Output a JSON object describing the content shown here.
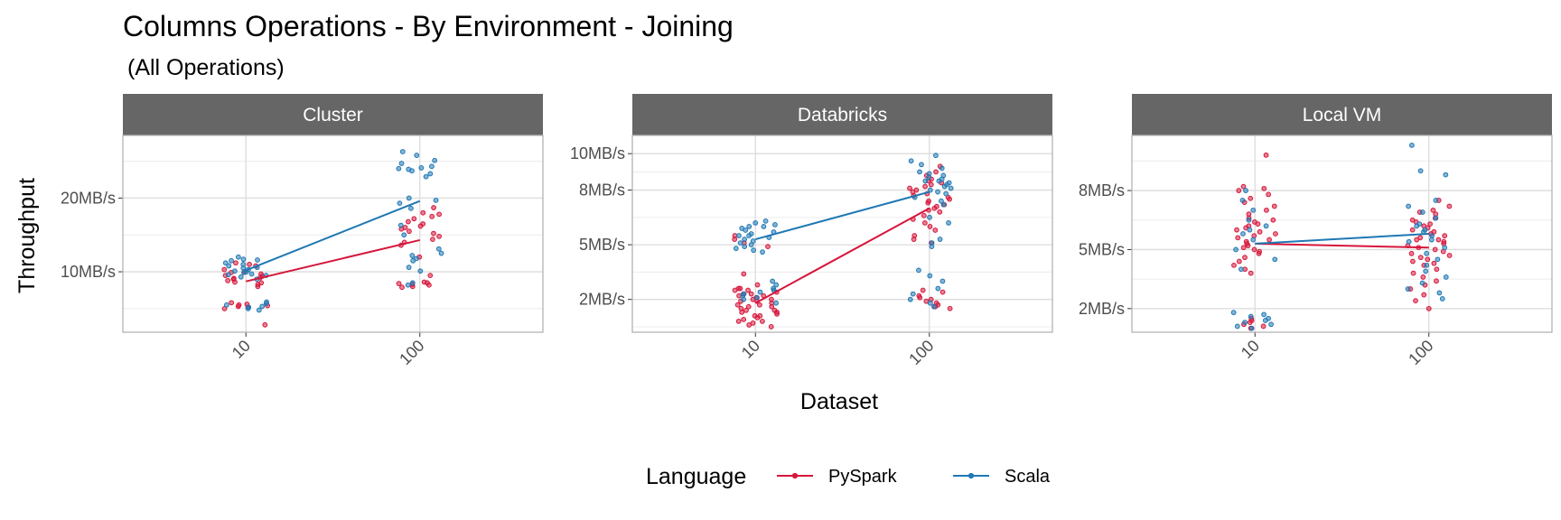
{
  "chart_data": {
    "type": "scatter",
    "title": "Columns Operations - By Environment - Joining",
    "subtitle": "(All Operations)",
    "xlabel": "Dataset",
    "ylabel": "Throughput",
    "x_categories": [
      "10",
      "100"
    ],
    "legend": {
      "title": "Language",
      "position": "bottom",
      "entries": [
        {
          "name": "PySpark",
          "color": "#d6163b"
        },
        {
          "name": "Scala",
          "color": "#1f78b4"
        }
      ]
    },
    "grid": true,
    "facets": [
      {
        "name": "Cluster",
        "ylim": [
          1.8,
          28.5
        ],
        "y_ticks": [
          {
            "value": 10,
            "label": "10MB/s"
          },
          {
            "value": 20,
            "label": "20MB/s"
          }
        ],
        "series": [
          {
            "name": "PySpark",
            "line": [
              {
                "x": "10",
                "y": 8.7
              },
              {
                "x": "100",
                "y": 14.3
              }
            ],
            "points": {
              "10": [
                10.3,
                10.0,
                9.7,
                9.5,
                9.2,
                9.0,
                8.8,
                8.5,
                8.3,
                8.0,
                10.8,
                11.0,
                9.9,
                9.4,
                8.6,
                5.8,
                5.6,
                5.4,
                5.2,
                5.0,
                5.5,
                5.3,
                2.8,
                11.2,
                9.1
              ],
              "100": [
                18.7,
                18.0,
                17.5,
                17.2,
                16.8,
                16.5,
                16.0,
                15.5,
                15.2,
                14.8,
                14.4,
                14.0,
                13.6,
                8.6,
                8.3,
                8.0,
                8.5,
                8.2,
                7.9,
                8.4,
                12.0,
                9.5,
                17.8,
                15.8,
                16.2
              ]
            }
          },
          {
            "name": "Scala",
            "line": [
              {
                "x": "10",
                "y": 10.2
              },
              {
                "x": "100",
                "y": 19.6
              }
            ],
            "points": {
              "10": [
                12.0,
                11.7,
                11.5,
                11.2,
                11.0,
                10.8,
                10.5,
                10.3,
                10.1,
                9.9,
                9.7,
                9.5,
                9.3,
                9.0,
                5.9,
                5.7,
                5.5,
                5.2,
                5.0,
                4.8,
                11.6,
                10.6,
                9.6,
                5.3,
                10.0
              ],
              "100": [
                26.3,
                25.8,
                25.1,
                24.7,
                24.3,
                24.0,
                23.7,
                23.3,
                22.9,
                20.0,
                19.7,
                19.3,
                18.6,
                16.3,
                15.0,
                13.1,
                12.5,
                12.2,
                11.8,
                11.5,
                10.6,
                10.1,
                8.5,
                8.2,
                24.1,
                23.9
              ]
            }
          }
        ]
      },
      {
        "name": "Databricks",
        "ylim": [
          0.2,
          11.0
        ],
        "y_ticks": [
          {
            "value": 2,
            "label": "2MB/s"
          },
          {
            "value": 5,
            "label": "5MB/s"
          },
          {
            "value": 8,
            "label": "8MB/s"
          },
          {
            "value": 10,
            "label": "10MB/s"
          }
        ],
        "series": [
          {
            "name": "PySpark",
            "line": [
              {
                "x": "10",
                "y": 1.8
              },
              {
                "x": "100",
                "y": 7.0
              }
            ],
            "points": {
              "10": [
                5.5,
                5.3,
                5.1,
                4.9,
                2.8,
                2.6,
                2.5,
                2.4,
                2.3,
                2.2,
                2.1,
                2.0,
                1.9,
                1.8,
                1.7,
                1.6,
                1.5,
                1.4,
                1.3,
                1.2,
                1.1,
                1.0,
                0.9,
                0.8,
                0.7,
                0.6,
                2.6,
                2.3,
                2.0,
                1.7,
                1.4,
                1.1,
                0.8,
                2.5,
                1.9,
                1.3,
                3.4,
                0.5,
                2.2,
                1.6
              ],
              "100": [
                9.3,
                9.0,
                8.8,
                8.6,
                8.5,
                8.4,
                8.3,
                8.2,
                8.1,
                8.0,
                7.9,
                7.8,
                7.7,
                7.6,
                7.5,
                7.4,
                7.3,
                7.2,
                7.1,
                7.0,
                6.9,
                6.8,
                6.6,
                6.4,
                6.2,
                6.0,
                5.8,
                5.5,
                5.3,
                5.1,
                2.5,
                2.4,
                2.2,
                2.1,
                2.0,
                1.9,
                1.8,
                1.7,
                1.6,
                1.5
              ]
            }
          },
          {
            "name": "Scala",
            "line": [
              {
                "x": "10",
                "y": 5.3
              },
              {
                "x": "100",
                "y": 7.9
              }
            ],
            "points": {
              "10": [
                6.3,
                6.2,
                6.1,
                6.0,
                5.9,
                5.8,
                5.7,
                5.6,
                5.5,
                5.4,
                5.3,
                5.2,
                5.1,
                5.0,
                4.9,
                4.8,
                4.7,
                4.6,
                3.0,
                2.8,
                2.6,
                2.5,
                2.4,
                2.3,
                2.2,
                2.1,
                2.0,
                1.8,
                6.0,
                5.5
              ],
              "100": [
                9.9,
                9.6,
                9.4,
                9.2,
                9.0,
                8.9,
                8.8,
                8.7,
                8.6,
                8.5,
                8.4,
                8.3,
                8.2,
                8.1,
                8.0,
                7.9,
                7.8,
                7.6,
                7.4,
                7.2,
                6.5,
                6.2,
                5.3,
                5.1,
                4.9,
                3.6,
                3.3,
                3.0,
                2.6,
                2.3,
                2.0,
                1.8,
                1.6,
                8.5
              ]
            }
          }
        ]
      },
      {
        "name": "Local VM",
        "ylim": [
          0.8,
          10.8
        ],
        "y_ticks": [
          {
            "value": 2,
            "label": "2MB/s"
          },
          {
            "value": 5,
            "label": "5MB/s"
          },
          {
            "value": 8,
            "label": "8MB/s"
          }
        ],
        "series": [
          {
            "name": "PySpark",
            "line": [
              {
                "x": "10",
                "y": 5.3
              },
              {
                "x": "100",
                "y": 5.1
              }
            ],
            "points": {
              "10": [
                9.8,
                8.2,
                8.1,
                8.0,
                7.8,
                7.6,
                7.4,
                7.2,
                7.0,
                6.8,
                6.6,
                6.5,
                6.4,
                6.3,
                6.2,
                6.1,
                6.0,
                5.9,
                5.8,
                5.7,
                5.6,
                5.5,
                5.4,
                5.3,
                5.2,
                5.1,
                5.0,
                4.9,
                4.8,
                4.6,
                4.4,
                4.2,
                4.0,
                3.8,
                1.4,
                1.3,
                1.2,
                1.1,
                1.0,
                1.5
              ],
              "100": [
                7.5,
                7.2,
                7.0,
                6.9,
                6.8,
                6.6,
                6.5,
                6.4,
                6.3,
                6.2,
                6.0,
                5.9,
                5.8,
                5.7,
                5.6,
                5.5,
                5.4,
                5.3,
                5.2,
                5.1,
                5.0,
                4.9,
                4.8,
                4.7,
                4.6,
                4.5,
                4.4,
                4.3,
                4.2,
                4.0,
                3.8,
                3.6,
                3.4,
                3.2,
                3.0,
                2.7,
                2.4,
                2.0,
                5.5,
                6.1
              ]
            }
          },
          {
            "name": "Scala",
            "line": [
              {
                "x": "10",
                "y": 5.3
              },
              {
                "x": "100",
                "y": 5.8
              }
            ],
            "points": {
              "10": [
                8.0,
                7.5,
                7.0,
                6.5,
                6.0,
                5.5,
                5.0,
                4.5,
                4.0,
                1.8,
                1.7,
                1.6,
                1.5,
                1.4,
                1.3,
                1.2,
                1.1,
                1.0,
                6.2,
                5.8
              ],
              "100": [
                10.3,
                9.0,
                8.8,
                7.5,
                7.2,
                6.9,
                6.6,
                6.3,
                6.0,
                5.7,
                5.4,
                5.1,
                4.8,
                4.5,
                4.2,
                3.9,
                3.6,
                3.3,
                3.0,
                2.8,
                2.5,
                6.2,
                5.9,
                5.5
              ]
            }
          }
        ]
      }
    ]
  }
}
